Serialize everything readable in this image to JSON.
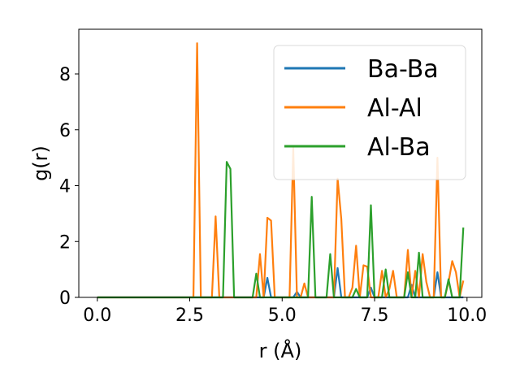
{
  "chart_data": {
    "type": "line",
    "title": "",
    "xlabel": "r (Å)",
    "ylabel": "g(r)",
    "xlim": [
      -0.5,
      10.4
    ],
    "ylim": [
      0,
      9.6
    ],
    "xticks": [
      0.0,
      2.5,
      5.0,
      7.5,
      10.0
    ],
    "xtick_labels": [
      "0.0",
      "2.5",
      "5.0",
      "7.5",
      "10.0"
    ],
    "yticks": [
      0,
      2,
      4,
      6,
      8
    ],
    "ytick_labels": [
      "0",
      "2",
      "4",
      "6",
      "8"
    ],
    "grid": false,
    "legend_position": "upper right",
    "series": [
      {
        "name": "Ba-Ba",
        "color": "#1f77b4",
        "x": [
          0.0,
          4.4,
          4.5,
          4.6,
          4.7,
          5.3,
          5.4,
          5.5,
          6.4,
          6.5,
          6.6,
          7.3,
          7.4,
          7.5,
          8.4,
          8.5,
          8.6,
          9.1,
          9.2,
          9.3,
          9.9
        ],
        "y": [
          0.0,
          0.0,
          0.0,
          0.7,
          0.0,
          0.0,
          0.2,
          0.0,
          0.0,
          1.05,
          0.0,
          0.0,
          0.35,
          0.0,
          0.0,
          0.45,
          0.0,
          0.0,
          0.9,
          0.0,
          0.0
        ]
      },
      {
        "name": "Al-Al",
        "color": "#ff7f0e",
        "x": [
          0.0,
          2.6,
          2.7,
          2.8,
          3.1,
          3.2,
          3.3,
          4.3,
          4.4,
          4.5,
          4.6,
          4.7,
          4.8,
          5.2,
          5.3,
          5.4,
          5.5,
          5.6,
          5.7,
          5.8,
          6.4,
          6.5,
          6.6,
          6.7,
          6.8,
          6.9,
          7.0,
          7.1,
          7.2,
          7.3,
          7.4,
          7.5,
          7.6,
          7.7,
          7.8,
          7.9,
          8.0,
          8.1,
          8.2,
          8.3,
          8.4,
          8.5,
          8.6,
          8.7,
          8.8,
          8.9,
          9.0,
          9.1,
          9.2,
          9.3,
          9.4,
          9.5,
          9.6,
          9.7,
          9.8,
          9.9
        ],
        "y": [
          0.0,
          0.0,
          9.1,
          0.0,
          0.0,
          2.9,
          0.0,
          0.0,
          1.55,
          0.0,
          2.85,
          2.75,
          0.0,
          0.0,
          5.35,
          0.0,
          0.0,
          0.5,
          0.0,
          0.0,
          0.0,
          4.25,
          2.8,
          0.0,
          0.0,
          0.35,
          1.85,
          0.0,
          1.15,
          1.1,
          0.0,
          0.0,
          0.0,
          0.95,
          0.0,
          0.3,
          0.95,
          0.0,
          0.0,
          0.0,
          1.7,
          0.0,
          0.95,
          0.0,
          1.55,
          0.55,
          0.0,
          0.0,
          5.0,
          0.0,
          0.0,
          0.55,
          1.3,
          0.9,
          0.0,
          0.6
        ]
      },
      {
        "name": "Al-Ba",
        "color": "#2ca02c",
        "x": [
          0.0,
          3.4,
          3.5,
          3.6,
          3.7,
          4.2,
          4.3,
          4.4,
          5.7,
          5.8,
          5.9,
          6.2,
          6.3,
          6.4,
          6.9,
          7.0,
          7.1,
          7.3,
          7.4,
          7.5,
          7.7,
          7.8,
          7.9,
          8.3,
          8.4,
          8.5,
          8.6,
          8.7,
          8.8,
          8.9,
          9.4,
          9.5,
          9.6,
          9.8,
          9.9
        ],
        "y": [
          0.0,
          0.0,
          4.85,
          4.6,
          0.0,
          0.0,
          0.85,
          0.0,
          0.0,
          3.6,
          0.0,
          0.0,
          1.55,
          0.0,
          0.0,
          0.3,
          0.0,
          0.0,
          3.3,
          0.0,
          0.0,
          1.0,
          0.0,
          0.0,
          0.9,
          0.0,
          0.0,
          1.6,
          0.0,
          0.0,
          0.0,
          0.65,
          0.0,
          0.0,
          2.5
        ]
      }
    ]
  }
}
